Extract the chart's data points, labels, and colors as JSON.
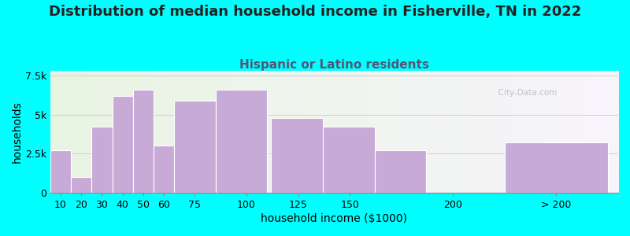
{
  "title": "Distribution of median household income in Fisherville, TN in 2022",
  "subtitle": "Hispanic or Latino residents",
  "xlabel": "household income ($1000)",
  "ylabel": "households",
  "background_color": "#00ffff",
  "plot_bg_left": "#e8f5e2",
  "plot_bg_right": "#f8f4fc",
  "bar_color": "#c8aad6",
  "bar_edge_color": "#ffffff",
  "categories": [
    "10",
    "20",
    "30",
    "40",
    "50",
    "60",
    "75",
    "100",
    "125",
    "150",
    "200",
    "> 200"
  ],
  "left_edges": [
    5,
    15,
    25,
    35,
    45,
    55,
    65,
    85,
    112,
    137,
    162,
    225
  ],
  "widths": [
    10,
    10,
    10,
    10,
    10,
    10,
    20,
    25,
    25,
    25,
    25,
    50
  ],
  "values": [
    2700,
    1000,
    4200,
    6200,
    6600,
    3000,
    5900,
    6600,
    4800,
    4200,
    2700,
    3200
  ],
  "ylim": [
    0,
    7800
  ],
  "yticks": [
    0,
    2500,
    5000,
    7500
  ],
  "ytick_labels": [
    "0",
    "2.5k",
    "5k",
    "7.5k"
  ],
  "xtick_positions": [
    10,
    20,
    30,
    40,
    50,
    60,
    75,
    100,
    125,
    150,
    200,
    250
  ],
  "xtick_labels": [
    "10",
    "20",
    "30",
    "40",
    "50",
    "60",
    "75",
    "100",
    "125",
    "150",
    "200",
    "> 200"
  ],
  "xlim": [
    5,
    280
  ],
  "title_fontsize": 13,
  "subtitle_fontsize": 11,
  "axis_label_fontsize": 10,
  "tick_fontsize": 9,
  "watermark": "  City-Data.com",
  "subtitle_color": "#555577",
  "title_color": "#222222",
  "grid_color": "#ccbbcc",
  "spine_color": "#888888"
}
